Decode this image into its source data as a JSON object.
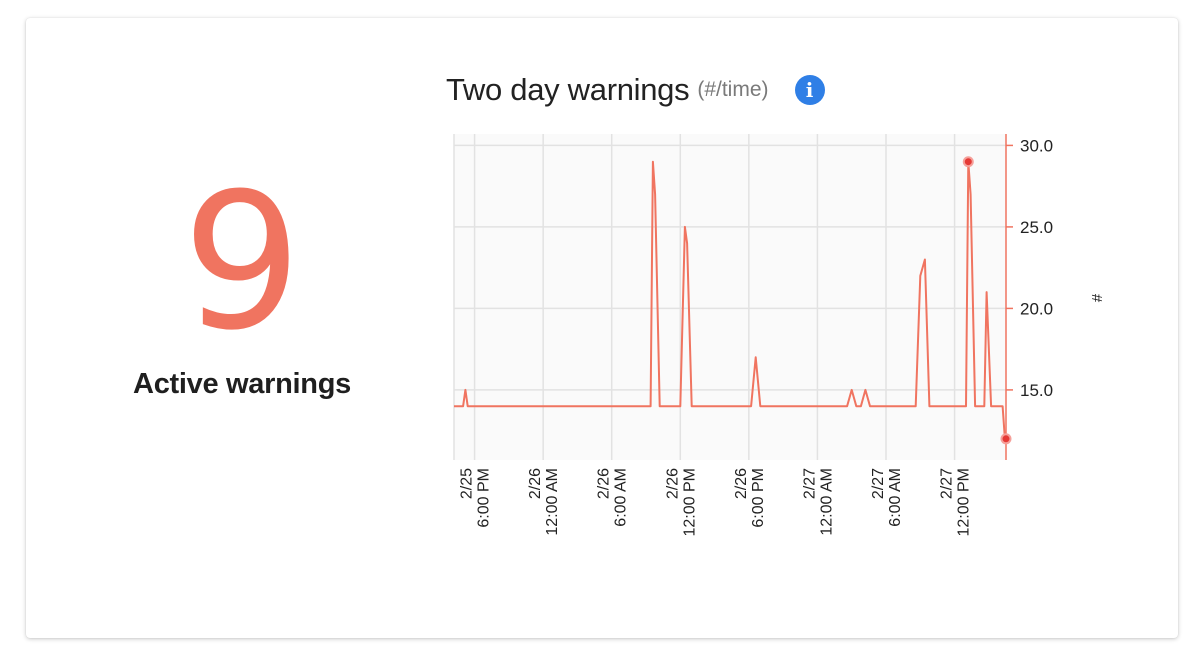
{
  "kpi": {
    "value": "9",
    "label": "Active warnings"
  },
  "chart_header": {
    "title": "Two day warnings",
    "unit": "(#/time)",
    "info_icon": "info-icon"
  },
  "colors": {
    "accent": "#f07460",
    "info": "#2f7fe6",
    "marker": "#e53935"
  },
  "chart_data": {
    "type": "line",
    "title": "Two day warnings",
    "subtitle": "(#/time)",
    "xlabel": "",
    "ylabel": "#",
    "y_axis_position": "right",
    "ylim": [
      10.7,
      30.7
    ],
    "yticks": [
      15,
      20,
      25,
      30
    ],
    "ytick_labels": [
      "15.0",
      "20.0",
      "25.0",
      "30.0"
    ],
    "xlim": [
      "2/25 4:12 PM",
      "2/27 4:30 PM"
    ],
    "xticks": [
      {
        "x": "2/25 6:00 PM",
        "date": "2/25",
        "time": "6:00 PM"
      },
      {
        "x": "2/26 12:00 AM",
        "date": "2/26",
        "time": "12:00 AM"
      },
      {
        "x": "2/26 6:00 AM",
        "date": "2/26",
        "time": "6:00 AM"
      },
      {
        "x": "2/26 12:00 PM",
        "date": "2/26",
        "time": "12:00 PM"
      },
      {
        "x": "2/26 6:00 PM",
        "date": "2/26",
        "time": "6:00 PM"
      },
      {
        "x": "2/27 12:00 AM",
        "date": "2/27",
        "time": "12:00 AM"
      },
      {
        "x": "2/27 6:00 AM",
        "date": "2/27",
        "time": "6:00 AM"
      },
      {
        "x": "2/27 12:00 PM",
        "date": "2/27",
        "time": "12:00 PM"
      }
    ],
    "grid": true,
    "series": [
      {
        "x": [
          "2/25 4:12 PM",
          "2/25 5:00 PM",
          "2/25 5:12 PM",
          "2/25 5:24 PM",
          "2/26 9:24 AM",
          "2/26 9:36 AM",
          "2/26 9:48 AM",
          "2/26 10:12 AM",
          "2/26 12:00 PM",
          "2/26 12:24 PM",
          "2/26 12:36 PM",
          "2/26 1:00 PM",
          "2/26 6:12 PM",
          "2/26 6:36 PM",
          "2/26 7:00 PM",
          "2/27 2:36 AM",
          "2/27 3:00 AM",
          "2/27 3:24 AM",
          "2/27 3:48 AM",
          "2/27 4:12 AM",
          "2/27 4:36 AM",
          "2/27 8:36 AM",
          "2/27 9:00 AM",
          "2/27 9:24 AM",
          "2/27 9:48 AM",
          "2/27 1:00 PM",
          "2/27 1:12 PM",
          "2/27 1:24 PM",
          "2/27 1:48 PM",
          "2/27 2:36 PM",
          "2/27 2:48 PM",
          "2/27 3:12 PM",
          "2/27 4:12 PM",
          "2/27 4:24 PM"
        ],
        "values": [
          14,
          14,
          15,
          14,
          14,
          29,
          27,
          14,
          14,
          25,
          24,
          14,
          14,
          17,
          14,
          14,
          15,
          14,
          14,
          15,
          14,
          14,
          22,
          23,
          14,
          14,
          29,
          27,
          14,
          14,
          21,
          14,
          14,
          12
        ]
      }
    ],
    "highlighted_points": [
      {
        "x": "2/27 1:12 PM",
        "y": 29
      },
      {
        "x": "2/27 4:30 PM",
        "y": 12
      }
    ]
  }
}
